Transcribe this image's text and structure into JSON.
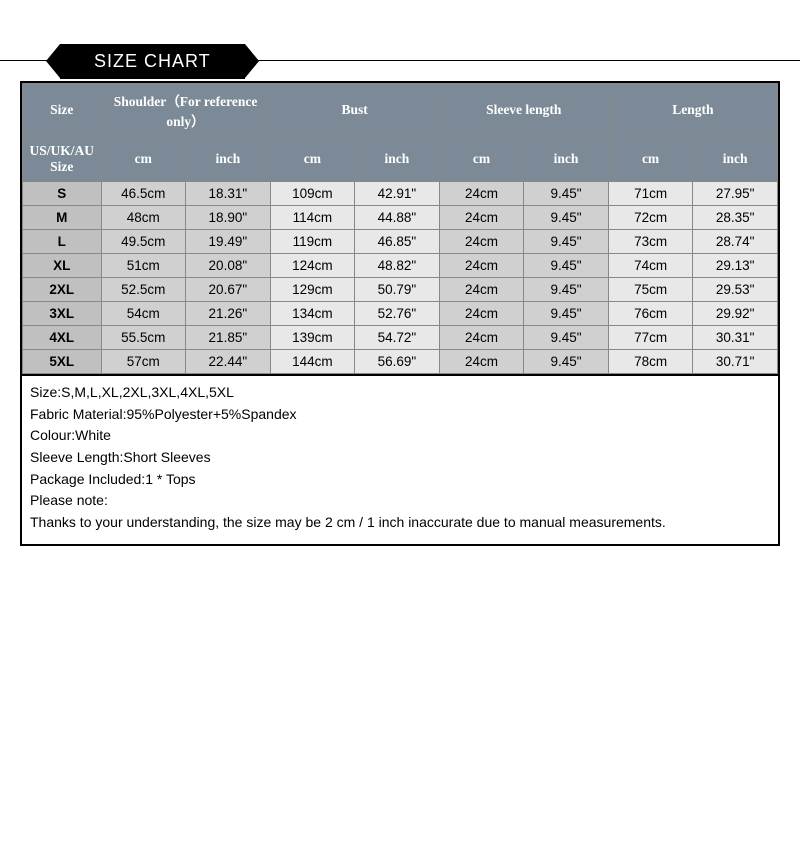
{
  "type": "table",
  "title": "SIZE CHART",
  "background_color": "#ffffff",
  "header_bg": "#7b8a96",
  "header_fg": "#ffffff",
  "row_label_bg": "#c0c0c0",
  "stripe_even_bg": "#d0d0d0",
  "stripe_odd_bg": "#e8e8e8",
  "border_color": "#000000",
  "grid_color": "#888888",
  "header_fontsize": 14,
  "body_fontsize": 13.5,
  "notes_fontsize": 14,
  "col_widths_pct": [
    10.4,
    11.2,
    11.2,
    11.2,
    11.2,
    11.2,
    11.2,
    11.2,
    11.2
  ],
  "header_row1": {
    "size": "Size",
    "shoulder": "Shoulder（For reference only）",
    "bust": "Bust",
    "sleeve": "Sleeve length",
    "length": "Length"
  },
  "header_row2": {
    "size": "US/UK/AU Size",
    "cm": "cm",
    "inch": "inch"
  },
  "rows": [
    {
      "size": "S",
      "shoulder_cm": "46.5cm",
      "shoulder_in": "18.31\"",
      "bust_cm": "109cm",
      "bust_in": "42.91\"",
      "sleeve_cm": "24cm",
      "sleeve_in": "9.45\"",
      "len_cm": "71cm",
      "len_in": "27.95\""
    },
    {
      "size": "M",
      "shoulder_cm": "48cm",
      "shoulder_in": "18.90\"",
      "bust_cm": "114cm",
      "bust_in": "44.88\"",
      "sleeve_cm": "24cm",
      "sleeve_in": "9.45\"",
      "len_cm": "72cm",
      "len_in": "28.35\""
    },
    {
      "size": "L",
      "shoulder_cm": "49.5cm",
      "shoulder_in": "19.49\"",
      "bust_cm": "119cm",
      "bust_in": "46.85\"",
      "sleeve_cm": "24cm",
      "sleeve_in": "9.45\"",
      "len_cm": "73cm",
      "len_in": "28.74\""
    },
    {
      "size": "XL",
      "shoulder_cm": "51cm",
      "shoulder_in": "20.08\"",
      "bust_cm": "124cm",
      "bust_in": "48.82\"",
      "sleeve_cm": "24cm",
      "sleeve_in": "9.45\"",
      "len_cm": "74cm",
      "len_in": "29.13\""
    },
    {
      "size": "2XL",
      "shoulder_cm": "52.5cm",
      "shoulder_in": "20.67\"",
      "bust_cm": "129cm",
      "bust_in": "50.79\"",
      "sleeve_cm": "24cm",
      "sleeve_in": "9.45\"",
      "len_cm": "75cm",
      "len_in": "29.53\""
    },
    {
      "size": "3XL",
      "shoulder_cm": "54cm",
      "shoulder_in": "21.26\"",
      "bust_cm": "134cm",
      "bust_in": "52.76\"",
      "sleeve_cm": "24cm",
      "sleeve_in": "9.45\"",
      "len_cm": "76cm",
      "len_in": "29.92\""
    },
    {
      "size": "4XL",
      "shoulder_cm": "55.5cm",
      "shoulder_in": "21.85\"",
      "bust_cm": "139cm",
      "bust_in": "54.72\"",
      "sleeve_cm": "24cm",
      "sleeve_in": "9.45\"",
      "len_cm": "77cm",
      "len_in": "30.31\""
    },
    {
      "size": "5XL",
      "shoulder_cm": "57cm",
      "shoulder_in": "22.44\"",
      "bust_cm": "144cm",
      "bust_in": "56.69\"",
      "sleeve_cm": "24cm",
      "sleeve_in": "9.45\"",
      "len_cm": "78cm",
      "len_in": "30.71\""
    }
  ],
  "notes": [
    "Size:S,M,L,XL,2XL,3XL,4XL,5XL",
    "Fabric Material:95%Polyester+5%Spandex",
    "Colour:White",
    "Sleeve Length:Short Sleeves",
    "Package Included:1 * Tops",
    "Please note:",
    "Thanks to your understanding, the size may be 2 cm / 1 inch inaccurate due to manual measurements."
  ]
}
